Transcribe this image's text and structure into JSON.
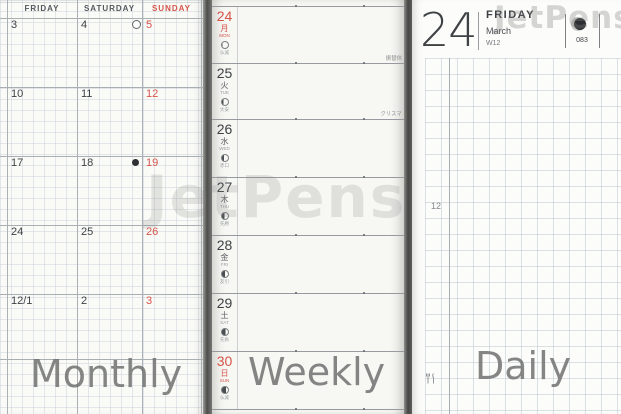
{
  "watermark": {
    "text": "JetPens"
  },
  "colors": {
    "accent_red": "#d5544a",
    "label_gray": "#8a8a8a",
    "paper": "#f9f9f6"
  },
  "panels": {
    "monthly": {
      "label": "Monthly",
      "headers": [
        "FRIDAY",
        "SATURDAY",
        "SUNDAY"
      ],
      "rows": [
        {
          "cells": [
            "3",
            "4",
            "5"
          ],
          "moon": "open-circle"
        },
        {
          "cells": [
            "10",
            "11",
            "12"
          ]
        },
        {
          "cells": [
            "17",
            "18",
            "19"
          ],
          "moon": "filled-circle"
        },
        {
          "cells": [
            "24",
            "25",
            "26"
          ]
        },
        {
          "cells": [
            "12/1",
            "2",
            "3"
          ]
        }
      ]
    },
    "weekly": {
      "label": "Weekly",
      "days": [
        {
          "num": "24",
          "kanji": "月",
          "en": "MON",
          "rokuyo": "仏滅",
          "red": true,
          "moon_phase": "waning-1",
          "moon_dark": 0.12,
          "note": "振替休"
        },
        {
          "num": "25",
          "kanji": "火",
          "en": "TUE",
          "rokuyo": "大安",
          "red": false,
          "moon_phase": "waning-2",
          "moon_dark": 0.22,
          "note": "クリスマ"
        },
        {
          "num": "26",
          "kanji": "水",
          "en": "WED",
          "rokuyo": "赤口",
          "red": false,
          "moon_phase": "waning-3",
          "moon_dark": 0.32
        },
        {
          "num": "27",
          "kanji": "木",
          "en": "THU",
          "rokuyo": "先勝",
          "red": false,
          "moon_phase": "waning-4",
          "moon_dark": 0.42
        },
        {
          "num": "28",
          "kanji": "金",
          "en": "FRI",
          "rokuyo": "友引",
          "red": false,
          "moon_phase": "waning-5",
          "moon_dark": 0.52
        },
        {
          "num": "29",
          "kanji": "土",
          "en": "SAT",
          "rokuyo": "先負",
          "red": false,
          "moon_phase": "last-quarter",
          "moon_dark": 0.6
        },
        {
          "num": "30",
          "kanji": "日",
          "en": "SUN",
          "rokuyo": "仏滅",
          "red": true,
          "moon_phase": "waning-6",
          "moon_dark": 0.7
        }
      ]
    },
    "daily": {
      "label": "Daily",
      "date": "24",
      "weekday": "FRIDAY",
      "month": "March",
      "week": "W12",
      "page": "083",
      "noon_label": "12",
      "icons": [
        "moon-icon",
        "meal-icon"
      ]
    }
  }
}
